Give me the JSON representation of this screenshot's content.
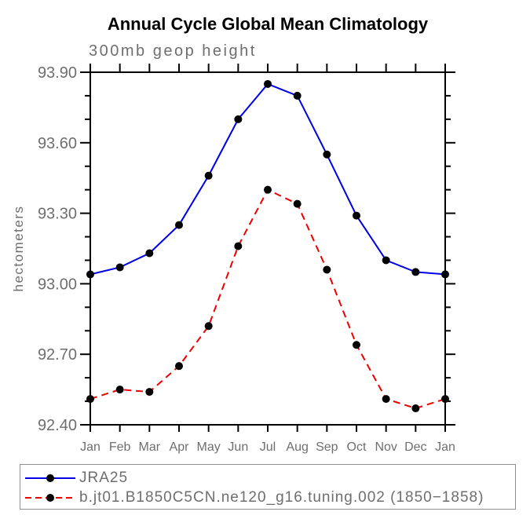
{
  "chart_data": {
    "type": "line",
    "title": "Annual Cycle Global Mean Climatology",
    "subtitle": "300mb geop height",
    "ylabel": "hectometers",
    "xlabel": "",
    "ylim": [
      92.4,
      93.9
    ],
    "ytick_major": [
      93.9,
      93.6,
      93.3,
      93.0,
      92.7,
      92.4
    ],
    "ytick_labels": [
      "93.90",
      "93.60",
      "93.30",
      "93.00",
      "92.70",
      "92.40"
    ],
    "ytick_minor_step": 0.1,
    "categories": [
      "Jan",
      "Feb",
      "Mar",
      "Apr",
      "May",
      "Jun",
      "Jul",
      "Aug",
      "Sep",
      "Oct",
      "Nov",
      "Dec",
      "Jan"
    ],
    "grid": false,
    "legend_position": "bottom-left-outside",
    "series": [
      {
        "name": "JRA25",
        "label": "JRA25",
        "color": "#0000e6",
        "line_style": "solid",
        "marker": "black-dot",
        "values": [
          93.04,
          93.07,
          93.13,
          93.25,
          93.46,
          93.7,
          93.85,
          93.8,
          93.55,
          93.29,
          93.1,
          93.05,
          93.04
        ]
      },
      {
        "name": "b.jt01.B1850C5CN.ne120_g16.tuning.002",
        "label": "b.jt01.B1850C5CN.ne120_g16.tuning.002 (1850−1858)",
        "color": "#ee0000",
        "line_style": "dashed",
        "marker": "black-dot",
        "values": [
          92.51,
          92.55,
          92.54,
          92.65,
          92.82,
          93.16,
          93.4,
          93.34,
          93.06,
          92.74,
          92.51,
          92.47,
          92.51
        ]
      }
    ],
    "colors": {
      "axis": "#000000",
      "marker": "#000000",
      "label_text": "#6e6e6e",
      "title_text": "#000000"
    }
  }
}
